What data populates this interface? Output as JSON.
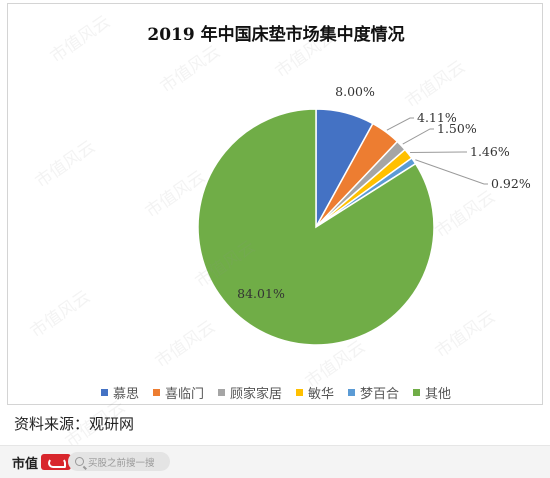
{
  "chart_data": {
    "type": "pie",
    "title": "2019 年中国床垫市场集中度情况",
    "slices": [
      {
        "label": "慕思",
        "value": 8.0,
        "value_label": "8.00%",
        "color": "#4472c4"
      },
      {
        "label": "喜临门",
        "value": 4.11,
        "value_label": "4.11%",
        "color": "#ed7d31"
      },
      {
        "label": "顾家家居",
        "value": 1.5,
        "value_label": "1.50%",
        "color": "#a5a5a5"
      },
      {
        "label": "敏华",
        "value": 1.46,
        "value_label": "1.46%",
        "color": "#ffc000"
      },
      {
        "label": "梦百合",
        "value": 0.92,
        "value_label": "0.92%",
        "color": "#5b9bd5"
      },
      {
        "label": "其他",
        "value": 84.01,
        "value_label": "84.01%",
        "color": "#70ad47"
      }
    ],
    "legend_position": "bottom"
  },
  "source_note": "资料来源：观研网",
  "footer": {
    "brand_text": "市值",
    "search_placeholder": "买股之前搜一搜"
  },
  "watermark_text": "市值风云"
}
